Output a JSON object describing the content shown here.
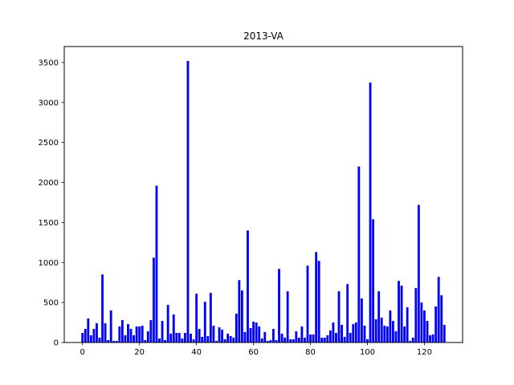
{
  "chart_data": {
    "type": "bar",
    "title": "2013-VA",
    "xlabel": "",
    "ylabel": "",
    "xlim": [
      -6.4,
      133.4
    ],
    "ylim": [
      0,
      3700
    ],
    "xticks": [
      0,
      20,
      40,
      60,
      80,
      100,
      120
    ],
    "yticks": [
      0,
      500,
      1000,
      1500,
      2000,
      2500,
      3000,
      3500
    ],
    "grid": false,
    "bar_color": "#0000ff",
    "x": [
      0,
      1,
      2,
      3,
      4,
      5,
      6,
      7,
      8,
      9,
      10,
      11,
      12,
      13,
      14,
      15,
      16,
      17,
      18,
      19,
      20,
      21,
      22,
      23,
      24,
      25,
      26,
      27,
      28,
      29,
      30,
      31,
      32,
      33,
      34,
      35,
      36,
      37,
      38,
      39,
      40,
      41,
      42,
      43,
      44,
      45,
      46,
      47,
      48,
      49,
      50,
      51,
      52,
      53,
      54,
      55,
      56,
      57,
      58,
      59,
      60,
      61,
      62,
      63,
      64,
      65,
      66,
      67,
      68,
      69,
      70,
      71,
      72,
      73,
      74,
      75,
      76,
      77,
      78,
      79,
      80,
      81,
      82,
      83,
      84,
      85,
      86,
      87,
      88,
      89,
      90,
      91,
      92,
      93,
      94,
      95,
      96,
      97,
      98,
      99,
      100,
      101,
      102,
      103,
      104,
      105,
      106,
      107,
      108,
      109,
      110,
      111,
      112,
      113,
      114,
      115,
      116,
      117,
      118,
      119,
      120,
      121,
      122,
      123,
      124,
      125,
      126,
      127
    ],
    "values": [
      120,
      170,
      300,
      90,
      170,
      240,
      60,
      850,
      240,
      30,
      400,
      20,
      20,
      200,
      280,
      90,
      230,
      170,
      90,
      200,
      200,
      210,
      30,
      140,
      280,
      1060,
      1960,
      50,
      270,
      30,
      470,
      110,
      350,
      120,
      120,
      50,
      120,
      3520,
      110,
      40,
      610,
      170,
      70,
      510,
      80,
      620,
      210,
      20,
      190,
      160,
      40,
      110,
      80,
      60,
      360,
      780,
      650,
      130,
      1400,
      180,
      260,
      250,
      200,
      50,
      130,
      20,
      30,
      170,
      30,
      920,
      110,
      60,
      640,
      40,
      40,
      140,
      60,
      200,
      60,
      960,
      100,
      100,
      1130,
      1020,
      60,
      60,
      90,
      150,
      250,
      120,
      640,
      220,
      70,
      730,
      120,
      230,
      250,
      2200,
      550,
      210,
      40,
      3250,
      1540,
      290,
      640,
      310,
      210,
      200,
      400,
      270,
      140,
      770,
      710,
      200,
      440,
      20,
      60,
      680,
      1720,
      500,
      400,
      270,
      90,
      100,
      450,
      820,
      590,
      220
    ]
  }
}
